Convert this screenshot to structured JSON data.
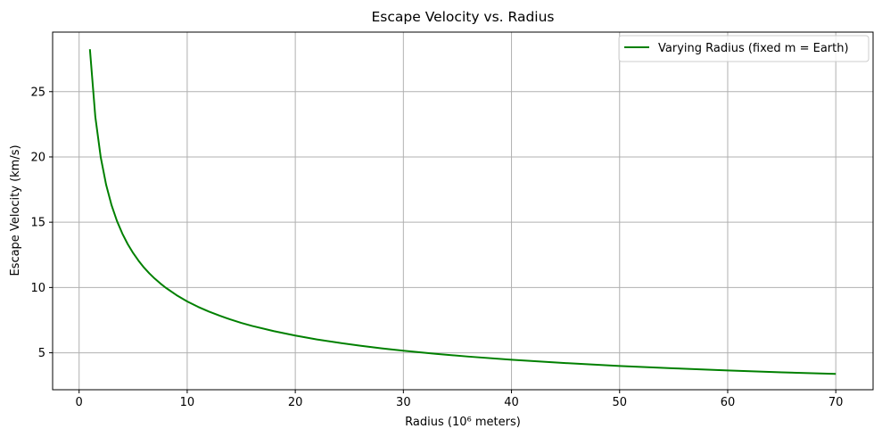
{
  "chart_data": {
    "type": "line",
    "title": "Escape Velocity vs. Radius",
    "xlabel": "Radius (10⁶ meters)",
    "ylabel": "Escape Velocity (km/s)",
    "xlim": [
      -2.45,
      73.45
    ],
    "ylim": [
      2.17,
      29.56
    ],
    "xticks": [
      0,
      10,
      20,
      30,
      40,
      50,
      60,
      70
    ],
    "yticks": [
      5,
      10,
      15,
      20,
      25
    ],
    "grid": true,
    "legend_position": "top-right",
    "series": [
      {
        "name": "Varying Radius (fixed m = Earth)",
        "color": "#008000",
        "x": [
          1,
          1.5,
          2,
          2.5,
          3,
          3.5,
          4,
          4.5,
          5,
          5.5,
          6,
          6.5,
          7,
          7.5,
          8,
          9,
          10,
          11,
          12,
          13,
          14,
          15,
          16,
          18,
          20,
          22,
          24,
          26,
          28,
          30,
          33,
          36,
          40,
          45,
          50,
          55,
          60,
          65,
          70
        ],
        "y": [
          28.25,
          23.07,
          19.98,
          17.87,
          16.31,
          15.1,
          14.13,
          13.32,
          12.64,
          12.05,
          11.53,
          11.08,
          10.68,
          10.32,
          9.99,
          9.42,
          8.93,
          8.52,
          8.16,
          7.84,
          7.55,
          7.29,
          7.06,
          6.66,
          6.32,
          6.02,
          5.77,
          5.54,
          5.34,
          5.16,
          4.92,
          4.71,
          4.47,
          4.21,
          3.99,
          3.81,
          3.65,
          3.5,
          3.38
        ]
      }
    ]
  }
}
